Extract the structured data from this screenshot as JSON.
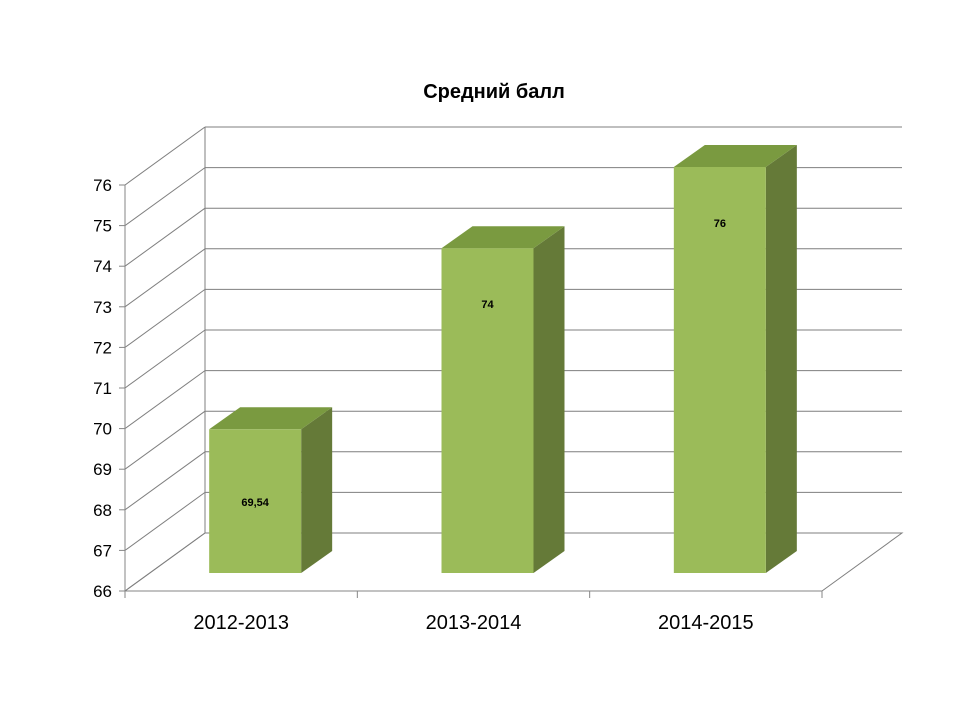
{
  "chart_data": {
    "type": "bar",
    "title": "Средний балл",
    "categories": [
      "2012-2013",
      "2013-2014",
      "2014-2015"
    ],
    "values": [
      69.54,
      74,
      76
    ],
    "data_labels": [
      "69,54",
      "74",
      "76"
    ],
    "ylim": [
      66,
      76
    ],
    "yticks": [
      "66",
      "67",
      "68",
      "69",
      "70",
      "71",
      "72",
      "73",
      "74",
      "75",
      "76"
    ],
    "grid": true,
    "three_d": true,
    "legend": "none",
    "colors": {
      "bar_front": "#9bbb59",
      "bar_top": "#7a9a40",
      "bar_side": "#657a38",
      "grid": "#7f7f7f",
      "axis": "#868686"
    }
  }
}
